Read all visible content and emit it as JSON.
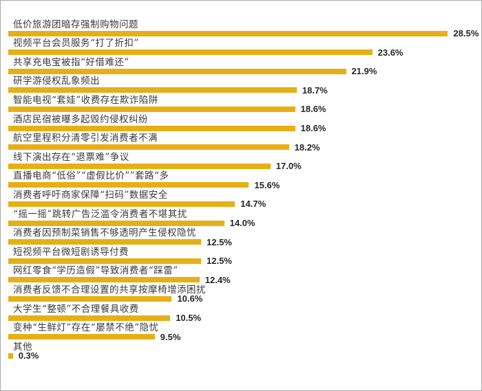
{
  "chart_data": {
    "type": "bar",
    "orientation": "horizontal",
    "title": "",
    "xlabel": "",
    "ylabel": "",
    "xlim": [
      0,
      30
    ],
    "grid": false,
    "legend": false,
    "bar_color": "#E6AF15",
    "label_color": "#3a3a3a",
    "value_color": "#262626",
    "border_color": "#a8a8a8",
    "categories": [
      "低价旅游团暗存强制购物问题",
      "视频平台会员服务“打了折扣”",
      "共享充电宝被指“好借难还”",
      "研学游侵权乱象频出",
      "智能电视“套娃”收费存在欺诈陷阱",
      "酒店民宿被曝多起毁约侵权纠纷",
      "航空里程积分清零引发消费者不满",
      "线下演出存在“退票难”争议",
      "直播电商“低俗”“虚假比价””套路“多",
      "消费者呼吁商家保障“扫码”数据安全",
      "“摇一摇”跳转广告泛滥令消费者不堪其扰",
      "消费者因预制菜销售不够透明产生侵权隐忧",
      "短视频平台微短剧诱导付费",
      "网红零食“学历造假”导致消费者“踩雷”",
      "消费者反馈不合理设置的共享按摩椅增添困扰",
      "大学生“整顿”不合理餐具收费",
      "变种“生鲜灯”存在“屡禁不绝”隐忧",
      "其他"
    ],
    "values": [
      28.5,
      23.6,
      21.9,
      18.7,
      18.6,
      18.6,
      18.2,
      17.0,
      15.6,
      14.7,
      14.0,
      12.5,
      12.5,
      12.4,
      10.6,
      10.5,
      9.5,
      0.3
    ],
    "value_labels": [
      "28.5%",
      "23.6%",
      "21.9%",
      "18.7%",
      "18.6%",
      "18.6%",
      "18.2%",
      "17.0%",
      "15.6%",
      "14.7%",
      "14.0%",
      "12.5%",
      "12.5%",
      "12.4%",
      "10.6%",
      "10.5%",
      "9.5%",
      "0.3%"
    ]
  }
}
